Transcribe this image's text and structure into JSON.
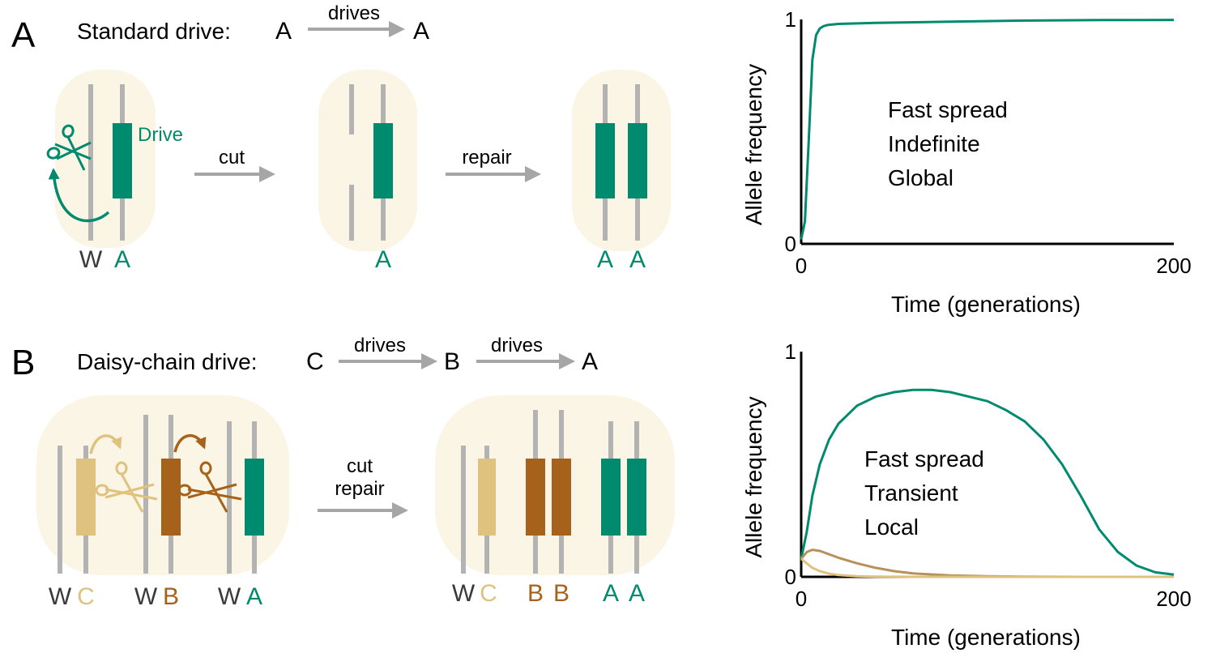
{
  "colors": {
    "drive_green": "#008a6e",
    "drive_tan": "#dfc27e",
    "drive_brown": "#a6611a",
    "wild": "#3a3a3a",
    "cell": "#fbf5e6",
    "chromosome": "#b3b3b3",
    "arrow": "#a6a6a6"
  },
  "panel_a": {
    "letter": "A",
    "title": "Standard drive:",
    "chain": {
      "from": "A",
      "arrow": "drives",
      "to": "A"
    },
    "drive_label": "Drive",
    "step1": "cut",
    "step2": "repair",
    "cell1": {
      "left": "W",
      "right": "A"
    },
    "cell2": {
      "right": "A"
    },
    "cell3": {
      "left": "A",
      "right": "A"
    },
    "icons": [
      "scissors-icon",
      "curved-arrow-icon"
    ]
  },
  "panel_b": {
    "letter": "B",
    "title": "Daisy-chain drive:",
    "chain": {
      "c": "C",
      "arrow1": "drives",
      "b": "B",
      "arrow2": "drives",
      "a": "A"
    },
    "step_line1": "cut",
    "step_line2": "repair",
    "before": [
      {
        "w": "W",
        "d": "C"
      },
      {
        "w": "W",
        "d": "B"
      },
      {
        "w": "W",
        "d": "A"
      }
    ],
    "after": [
      {
        "l": "W",
        "r": "C"
      },
      {
        "l": "B",
        "r": "B"
      },
      {
        "l": "A",
        "r": "A"
      }
    ]
  },
  "chart_data": [
    {
      "type": "line",
      "xlabel": "Time (generations)",
      "ylabel": "Allele frequency",
      "xlim": [
        0,
        200
      ],
      "ylim": [
        0,
        1
      ],
      "xticks": [
        "0",
        "200"
      ],
      "yticks": [
        "0",
        "1"
      ],
      "annotation": [
        "Fast spread",
        "Indefinite",
        "Global"
      ],
      "series": [
        {
          "color": "#008a6e",
          "x": [
            0,
            2,
            4,
            6,
            8,
            10,
            12,
            14,
            20,
            40,
            80,
            120,
            160,
            200
          ],
          "y": [
            0.02,
            0.1,
            0.45,
            0.82,
            0.93,
            0.96,
            0.97,
            0.975,
            0.98,
            0.985,
            0.99,
            0.995,
            0.997,
            0.998
          ]
        }
      ]
    },
    {
      "type": "line",
      "xlabel": "Time (generations)",
      "ylabel": "Allele frequency",
      "xlim": [
        0,
        200
      ],
      "ylim": [
        0,
        1
      ],
      "xticks": [
        "0",
        "200"
      ],
      "yticks": [
        "0",
        "1"
      ],
      "annotation": [
        "Fast spread",
        "Transient",
        "Local"
      ],
      "series": [
        {
          "color": "#008a6e",
          "x": [
            0,
            3,
            6,
            10,
            15,
            20,
            30,
            40,
            50,
            60,
            70,
            80,
            90,
            100,
            110,
            120,
            130,
            140,
            150,
            160,
            170,
            180,
            190,
            200
          ],
          "y": [
            0.08,
            0.2,
            0.36,
            0.5,
            0.61,
            0.68,
            0.76,
            0.8,
            0.82,
            0.83,
            0.83,
            0.82,
            0.8,
            0.78,
            0.74,
            0.69,
            0.61,
            0.5,
            0.36,
            0.21,
            0.11,
            0.05,
            0.02,
            0.01
          ]
        },
        {
          "color": "#b8905a",
          "x": [
            0,
            3,
            6,
            10,
            15,
            20,
            30,
            40,
            50,
            60,
            80,
            100,
            120,
            150,
            200
          ],
          "y": [
            0.08,
            0.11,
            0.12,
            0.115,
            0.1,
            0.085,
            0.06,
            0.04,
            0.025,
            0.015,
            0.006,
            0.003,
            0.001,
            0.0,
            0.0
          ]
        },
        {
          "color": "#dfc27e",
          "x": [
            0,
            3,
            6,
            10,
            15,
            20,
            30,
            40,
            60,
            100,
            200
          ],
          "y": [
            0.08,
            0.06,
            0.04,
            0.025,
            0.014,
            0.008,
            0.003,
            0.001,
            0.0,
            0.0,
            0.0
          ]
        }
      ]
    }
  ]
}
